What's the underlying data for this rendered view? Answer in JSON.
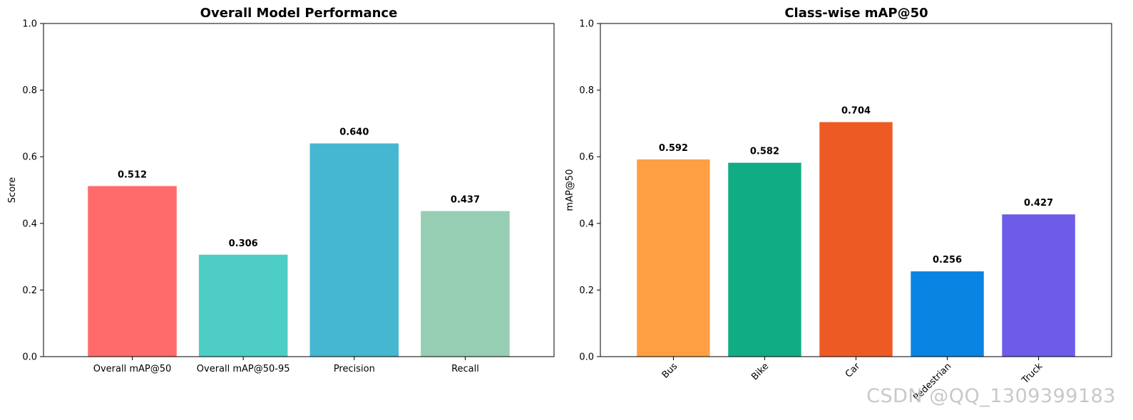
{
  "watermark": "CSDN @QQ_1309399183",
  "chart_data": [
    {
      "type": "bar",
      "title": "Overall Model Performance",
      "xlabel": "",
      "ylabel": "Score",
      "ylim": [
        0,
        1.0
      ],
      "yticks": [
        "0.0",
        "0.2",
        "0.4",
        "0.6",
        "0.8",
        "1.0"
      ],
      "categories": [
        "Overall mAP@50",
        "Overall mAP@50-95",
        "Precision",
        "Recall"
      ],
      "values": [
        0.512,
        0.306,
        0.64,
        0.437
      ],
      "value_labels": [
        "0.512",
        "0.306",
        "0.640",
        "0.437"
      ],
      "colors": [
        "#ff6b6b",
        "#4ecdc4",
        "#45b7d1",
        "#96ceb4"
      ],
      "grid": false,
      "rotate_xticks": false
    },
    {
      "type": "bar",
      "title": "Class-wise mAP@50",
      "xlabel": "",
      "ylabel": "mAP@50",
      "ylim": [
        0,
        1.0
      ],
      "yticks": [
        "0.0",
        "0.2",
        "0.4",
        "0.6",
        "0.8",
        "1.0"
      ],
      "categories": [
        "Bus",
        "Bike",
        "Car",
        "Pedestrian",
        "Truck"
      ],
      "values": [
        0.592,
        0.582,
        0.704,
        0.256,
        0.427
      ],
      "value_labels": [
        "0.592",
        "0.582",
        "0.704",
        "0.256",
        "0.427"
      ],
      "colors": [
        "#ff9f43",
        "#10ac84",
        "#ee5a24",
        "#0984e3",
        "#6c5ce7"
      ],
      "grid": false,
      "rotate_xticks": true
    }
  ]
}
